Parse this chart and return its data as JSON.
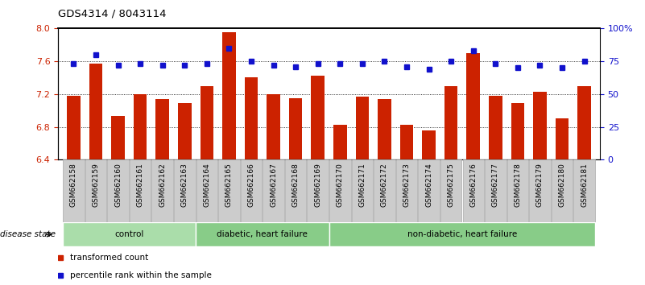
{
  "title": "GDS4314 / 8043114",
  "samples": [
    "GSM662158",
    "GSM662159",
    "GSM662160",
    "GSM662161",
    "GSM662162",
    "GSM662163",
    "GSM662164",
    "GSM662165",
    "GSM662166",
    "GSM662167",
    "GSM662168",
    "GSM662169",
    "GSM662170",
    "GSM662171",
    "GSM662172",
    "GSM662173",
    "GSM662174",
    "GSM662175",
    "GSM662176",
    "GSM662177",
    "GSM662178",
    "GSM662179",
    "GSM662180",
    "GSM662181"
  ],
  "transformed_counts": [
    7.18,
    7.57,
    6.93,
    7.2,
    7.14,
    7.09,
    7.3,
    7.95,
    7.4,
    7.2,
    7.15,
    7.42,
    6.82,
    7.17,
    7.14,
    6.82,
    6.76,
    7.3,
    7.7,
    7.18,
    7.09,
    7.23,
    6.9,
    7.3
  ],
  "percentile_ranks": [
    73,
    80,
    72,
    73,
    72,
    72,
    73,
    85,
    75,
    72,
    71,
    73,
    73,
    73,
    75,
    71,
    69,
    75,
    83,
    73,
    70,
    72,
    70,
    75
  ],
  "bar_color": "#CC2200",
  "dot_color": "#1111CC",
  "left_ylim": [
    6.4,
    8.0
  ],
  "right_ylim": [
    0,
    100
  ],
  "left_yticks": [
    6.4,
    6.8,
    7.2,
    7.6,
    8.0
  ],
  "right_yticks": [
    0,
    25,
    50,
    75,
    100
  ],
  "right_yticklabels": [
    "0",
    "25",
    "50",
    "75",
    "100%"
  ],
  "grid_values": [
    6.8,
    7.2,
    7.6
  ],
  "disease_state_label": "disease state",
  "legend_items": [
    {
      "color": "#CC2200",
      "label": "transformed count"
    },
    {
      "color": "#1111CC",
      "label": "percentile rank within the sample"
    }
  ],
  "group_defs": [
    {
      "start": 0,
      "end": 5,
      "label": "control",
      "color": "#aaddaa"
    },
    {
      "start": 6,
      "end": 11,
      "label": "diabetic, heart failure",
      "color": "#88cc88"
    },
    {
      "start": 12,
      "end": 23,
      "label": "non-diabetic, heart failure",
      "color": "#88cc88"
    }
  ],
  "sample_box_color": "#cccccc",
  "sample_box_edge": "#aaaaaa"
}
